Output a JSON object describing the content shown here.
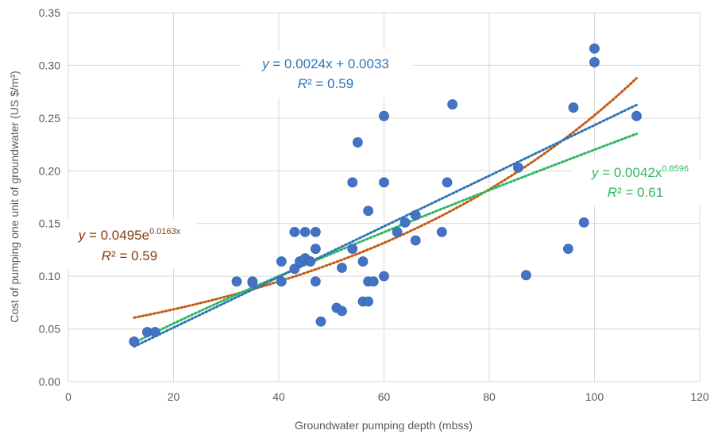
{
  "chart_data": {
    "type": "scatter",
    "xlabel": "Groundwater pumping depth (mbss)",
    "ylabel": "Cost of pumping one unit  of groundwater (US $/m³)",
    "xlim": [
      0,
      120
    ],
    "ylim": [
      0,
      0.35
    ],
    "x_ticks": [
      "0",
      "20",
      "40",
      "60",
      "80",
      "100",
      "120"
    ],
    "y_ticks": [
      "0.00",
      "0.05",
      "0.10",
      "0.15",
      "0.20",
      "0.25",
      "0.30",
      "0.35"
    ],
    "grid": true,
    "colors": {
      "points": "#4472c4",
      "linear": "#2e75b6",
      "exponential": "#c55a11",
      "power": "#2eb862",
      "grid": "#d9d9d9",
      "text": "#595959"
    },
    "points": [
      {
        "x": 12.5,
        "y": 0.038
      },
      {
        "x": 15.0,
        "y": 0.047
      },
      {
        "x": 16.5,
        "y": 0.047
      },
      {
        "x": 32.0,
        "y": 0.095
      },
      {
        "x": 35.0,
        "y": 0.095
      },
      {
        "x": 35.0,
        "y": 0.094
      },
      {
        "x": 40.5,
        "y": 0.095
      },
      {
        "x": 40.5,
        "y": 0.114
      },
      {
        "x": 43.0,
        "y": 0.107
      },
      {
        "x": 43.0,
        "y": 0.142
      },
      {
        "x": 44.0,
        "y": 0.114
      },
      {
        "x": 45.0,
        "y": 0.142
      },
      {
        "x": 45.0,
        "y": 0.117
      },
      {
        "x": 46.0,
        "y": 0.114
      },
      {
        "x": 47.0,
        "y": 0.142
      },
      {
        "x": 47.0,
        "y": 0.126
      },
      {
        "x": 47.0,
        "y": 0.095
      },
      {
        "x": 48.0,
        "y": 0.057
      },
      {
        "x": 51.0,
        "y": 0.07
      },
      {
        "x": 52.0,
        "y": 0.067
      },
      {
        "x": 52.0,
        "y": 0.108
      },
      {
        "x": 54.0,
        "y": 0.189
      },
      {
        "x": 54.0,
        "y": 0.126
      },
      {
        "x": 55.0,
        "y": 0.227
      },
      {
        "x": 56.0,
        "y": 0.114
      },
      {
        "x": 56.0,
        "y": 0.076
      },
      {
        "x": 57.0,
        "y": 0.162
      },
      {
        "x": 57.0,
        "y": 0.095
      },
      {
        "x": 57.0,
        "y": 0.076
      },
      {
        "x": 58.0,
        "y": 0.095
      },
      {
        "x": 60.0,
        "y": 0.252
      },
      {
        "x": 60.0,
        "y": 0.189
      },
      {
        "x": 60.0,
        "y": 0.1
      },
      {
        "x": 62.5,
        "y": 0.142
      },
      {
        "x": 64.0,
        "y": 0.151
      },
      {
        "x": 66.0,
        "y": 0.158
      },
      {
        "x": 66.0,
        "y": 0.134
      },
      {
        "x": 71.0,
        "y": 0.142
      },
      {
        "x": 72.0,
        "y": 0.189
      },
      {
        "x": 73.0,
        "y": 0.263
      },
      {
        "x": 85.5,
        "y": 0.203
      },
      {
        "x": 87.0,
        "y": 0.101
      },
      {
        "x": 95.0,
        "y": 0.126
      },
      {
        "x": 96.0,
        "y": 0.26
      },
      {
        "x": 98.0,
        "y": 0.151
      },
      {
        "x": 100.0,
        "y": 0.316
      },
      {
        "x": 100.0,
        "y": 0.303
      },
      {
        "x": 108.0,
        "y": 0.252
      }
    ],
    "trendlines": {
      "x_range": [
        12.5,
        108
      ],
      "linear": {
        "a": 0.0024,
        "b": 0.0033
      },
      "exponential": {
        "a": 0.0495,
        "b": 0.0163
      },
      "power": {
        "a": 0.0042,
        "b": 0.8596
      }
    },
    "annotations": {
      "linear": {
        "pre": "y",
        "eq": " = 0.0024x + 0.0033",
        "r2_pre": "R",
        "r2": "² = 0.59"
      },
      "exponential": {
        "pre": "y",
        "eq": " = 0.0495e",
        "sup": "0.0163x",
        "r2_pre": "R",
        "r2": "² = 0.59"
      },
      "power": {
        "pre": "y",
        "eq": " = 0.0042x",
        "sup": "0.8596",
        "r2_pre": "R",
        "r2": "² = 0.61"
      }
    }
  }
}
